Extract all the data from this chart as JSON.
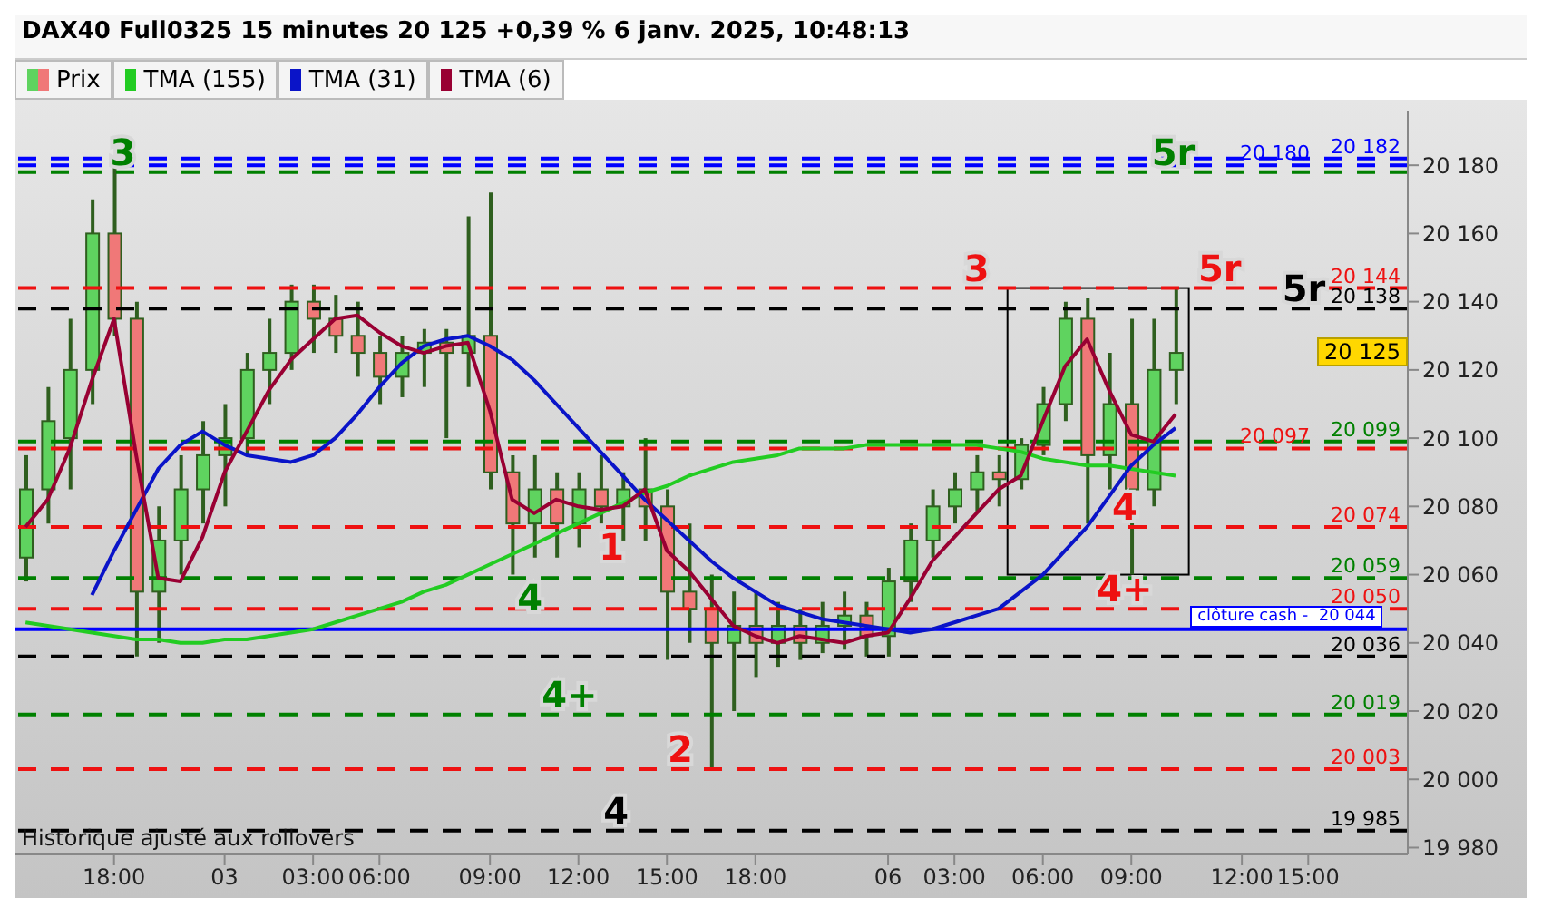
{
  "chart_data": {
    "type": "candlestick",
    "title": "DAX40 Full0325 15 minutes 20 125 +0,39 % 6 janv. 2025, 10:48:13",
    "legend": "top left",
    "grid": false,
    "categories": [
      null,
      null,
      null,
      null,
      "18:00",
      null,
      null,
      null,
      null,
      "03",
      null,
      null,
      null,
      "03:00",
      null,
      null,
      "06:00",
      null,
      null,
      null,
      null,
      "09:00",
      null,
      null,
      null,
      "12:00",
      null,
      null,
      null,
      "15:00",
      null,
      null,
      null,
      "18:00",
      null,
      null,
      null,
      null,
      null,
      "06",
      null,
      null,
      "03:00",
      null,
      null,
      null,
      "06:00",
      null,
      null,
      null,
      "09:00",
      null,
      null,
      null,
      null,
      "12:00",
      null,
      null,
      "15:00",
      null,
      null,
      null,
      null
    ],
    "ylim": [
      19978,
      20196
    ],
    "yticks": [
      {
        "value": 19980,
        "label": "19 980"
      },
      {
        "value": 20000,
        "label": "20 000"
      },
      {
        "value": 20020,
        "label": "20 020"
      },
      {
        "value": 20040,
        "label": "20 040"
      },
      {
        "value": 20060,
        "label": "20 060"
      },
      {
        "value": 20080,
        "label": "20 080"
      },
      {
        "value": 20100,
        "label": "20 100"
      },
      {
        "value": 20120,
        "label": "20 120"
      },
      {
        "value": 20140,
        "label": "20 140"
      },
      {
        "value": 20160,
        "label": "20 160"
      },
      {
        "value": 20180,
        "label": "20 180"
      }
    ],
    "series": [
      {
        "name": "Prix",
        "type": "candlestick",
        "ohlc": [
          [
            20065,
            20095,
            20058,
            20085
          ],
          [
            20085,
            20115,
            20075,
            20105
          ],
          [
            20100,
            20135,
            20085,
            20120
          ],
          [
            20120,
            20170,
            20110,
            20160
          ],
          [
            20160,
            20182,
            20130,
            20135
          ],
          [
            20135,
            20140,
            20036,
            20055
          ],
          [
            20055,
            20080,
            20040,
            20070
          ],
          [
            20070,
            20095,
            20060,
            20085
          ],
          [
            20085,
            20105,
            20075,
            20095
          ],
          [
            20095,
            20110,
            20080,
            20100
          ],
          [
            20100,
            20125,
            20095,
            20120
          ],
          [
            20120,
            20135,
            20110,
            20125
          ],
          [
            20125,
            20145,
            20120,
            20140
          ],
          [
            20140,
            20145,
            20125,
            20135
          ],
          [
            20135,
            20142,
            20125,
            20130
          ],
          [
            20130,
            20140,
            20118,
            20125
          ],
          [
            20125,
            20130,
            20110,
            20118
          ],
          [
            20118,
            20130,
            20112,
            20125
          ],
          [
            20125,
            20132,
            20115,
            20128
          ],
          [
            20128,
            20132,
            20100,
            20125
          ],
          [
            20125,
            20165,
            20115,
            20130
          ],
          [
            20130,
            20172,
            20085,
            20090
          ],
          [
            20090,
            20095,
            20060,
            20075
          ],
          [
            20075,
            20095,
            20065,
            20085
          ],
          [
            20085,
            20090,
            20065,
            20075
          ],
          [
            20075,
            20090,
            20068,
            20085
          ],
          [
            20085,
            20095,
            20075,
            20080
          ],
          [
            20080,
            20090,
            20070,
            20085
          ],
          [
            20085,
            20100,
            20070,
            20080
          ],
          [
            20080,
            20085,
            20035,
            20055
          ],
          [
            20055,
            20075,
            20040,
            20050
          ],
          [
            20050,
            20060,
            20003,
            20040
          ],
          [
            20040,
            20055,
            20020,
            20045
          ],
          [
            20045,
            20055,
            20030,
            20040
          ],
          [
            20040,
            20052,
            20033,
            20045
          ],
          [
            20045,
            20050,
            20035,
            20040
          ],
          [
            20040,
            20052,
            20037,
            20045
          ],
          [
            20045,
            20055,
            20038,
            20048
          ],
          [
            20048,
            20052,
            20036,
            20042
          ],
          [
            20042,
            20062,
            20036,
            20058
          ],
          [
            20058,
            20075,
            20052,
            20070
          ],
          [
            20070,
            20085,
            20065,
            20080
          ],
          [
            20080,
            20090,
            20075,
            20085
          ],
          [
            20085,
            20095,
            20078,
            20090
          ],
          [
            20090,
            20095,
            20080,
            20088
          ],
          [
            20088,
            20100,
            20085,
            20098
          ],
          [
            20098,
            20115,
            20095,
            20110
          ],
          [
            20110,
            20140,
            20105,
            20135
          ],
          [
            20135,
            20141,
            20075,
            20095
          ],
          [
            20095,
            20125,
            20085,
            20110
          ],
          [
            20110,
            20135,
            20060,
            20085
          ],
          [
            20085,
            20135,
            20080,
            20120
          ],
          [
            20120,
            20144,
            20110,
            20125
          ],
          null,
          null,
          null,
          null,
          null,
          null,
          null,
          null,
          null,
          null
        ],
        "colors": [
          "#5fd35f",
          "#5fd35f",
          "#5fd35f",
          "#5fd35f",
          "#f07878",
          "#f07878",
          "#5fd35f",
          "#5fd35f",
          "#5fd35f",
          "#5fd35f",
          "#5fd35f",
          "#5fd35f",
          "#5fd35f",
          "#f07878",
          "#f07878",
          "#f07878",
          "#f07878",
          "#5fd35f",
          "#5fd35f",
          "#f07878",
          "#5fd35f",
          "#f07878",
          "#f07878",
          "#5fd35f",
          "#f07878",
          "#5fd35f",
          "#f07878",
          "#5fd35f",
          "#f07878",
          "#f07878",
          "#f07878",
          "#f07878",
          "#5fd35f",
          "#f07878",
          "#5fd35f",
          "#f07878",
          "#5fd35f",
          "#5fd35f",
          "#f07878",
          "#5fd35f",
          "#5fd35f",
          "#5fd35f",
          "#5fd35f",
          "#5fd35f",
          "#f07878",
          "#5fd35f",
          "#5fd35f",
          "#5fd35f",
          "#f07878",
          "#5fd35f",
          "#f07878",
          "#5fd35f",
          "#5fd35f",
          null,
          null,
          null,
          null,
          null,
          null,
          null,
          null,
          null,
          null
        ]
      },
      {
        "name": "TMA (155)",
        "type": "line",
        "color": "#22cc22",
        "values": [
          20046,
          20045,
          20044,
          20043,
          20042,
          20041,
          20041,
          20040,
          20040,
          20041,
          20041,
          20042,
          20043,
          20044,
          20046,
          20048,
          20050,
          20052,
          20055,
          20057,
          20060,
          20063,
          20066,
          20069,
          20072,
          20075,
          20078,
          20081,
          20084,
          20086,
          20089,
          20091,
          20093,
          20094,
          20095,
          20097,
          20097,
          20097,
          20098,
          20098,
          20098,
          20098,
          20098,
          20098,
          20097,
          20096,
          20094,
          20093,
          20092,
          20092,
          20091,
          20090,
          20089,
          null,
          null,
          null,
          null,
          null,
          null,
          null,
          null,
          null,
          null
        ]
      },
      {
        "name": "TMA (31)",
        "type": "line",
        "color": "#0a14c8",
        "values": [
          null,
          null,
          null,
          20054,
          20067,
          20079,
          20091,
          20098,
          20102,
          20098,
          20095,
          20094,
          20093,
          20095,
          20100,
          20107,
          20115,
          20122,
          20127,
          20129,
          20130,
          20127,
          20123,
          20117,
          20110,
          20103,
          20096,
          20089,
          20082,
          20076,
          20070,
          20064,
          20059,
          20055,
          20051,
          20049,
          20047,
          20046,
          20045,
          20044,
          20043,
          20044,
          20046,
          20048,
          20050,
          20055,
          20060,
          20067,
          20074,
          20083,
          20092,
          20098,
          20103,
          null,
          null,
          null,
          null,
          null,
          null,
          null,
          null,
          null,
          null
        ]
      },
      {
        "name": "TMA (6)",
        "type": "line",
        "color": "#990033",
        "values": [
          20074,
          20082,
          20097,
          20117,
          20135,
          20095,
          20059,
          20058,
          20071,
          20090,
          20102,
          20114,
          20123,
          20129,
          20135,
          20136,
          20131,
          20127,
          20125,
          20127,
          20128,
          20108,
          20082,
          20078,
          20082,
          20080,
          20079,
          20080,
          20085,
          20067,
          20061,
          20053,
          20045,
          20042,
          20040,
          20042,
          20041,
          20040,
          20042,
          20043,
          20053,
          20064,
          20071,
          20078,
          20085,
          20089,
          20105,
          20121,
          20129,
          20114,
          20101,
          20099,
          20107,
          null,
          null,
          null,
          null,
          null,
          null,
          null,
          null,
          null,
          null
        ]
      }
    ],
    "ref_lines": [
      {
        "axis": "y",
        "value": 20182,
        "label": "20 182",
        "color": "#0000ff",
        "line_style": "dashed"
      },
      {
        "axis": "y",
        "value": 20180,
        "label": "20 180",
        "color": "#0000ff",
        "line_style": "dashed"
      },
      {
        "axis": "y",
        "value": 20178,
        "color": "#008000",
        "line_style": "dashed"
      },
      {
        "axis": "y",
        "value": 20144,
        "label": "20 144",
        "color": "#ee1111",
        "line_style": "dashed"
      },
      {
        "axis": "y",
        "value": 20138,
        "label": "20 138",
        "color": "#000000",
        "line_style": "dashed"
      },
      {
        "axis": "y",
        "value": 20099,
        "label": "20 099",
        "color": "#008000",
        "line_style": "dashed"
      },
      {
        "axis": "y",
        "value": 20097,
        "label": "20 097",
        "color": "#ee1111",
        "line_style": "dashed"
      },
      {
        "axis": "y",
        "value": 20074,
        "label": "20 074",
        "color": "#ee1111",
        "line_style": "dashed"
      },
      {
        "axis": "y",
        "value": 20059,
        "label": "20 059",
        "color": "#008000",
        "line_style": "dashed"
      },
      {
        "axis": "y",
        "value": 20050,
        "label": "20 050",
        "color": "#ee1111",
        "line_style": "dashed"
      },
      {
        "axis": "y",
        "value": 20044,
        "label": "clôture cash -  20 044",
        "color": "#0000ff",
        "line_style": "solid"
      },
      {
        "axis": "y",
        "value": 20036,
        "label": "20 036",
        "color": "#000000",
        "line_style": "dashed"
      },
      {
        "axis": "y",
        "value": 20019,
        "label": "20 019",
        "color": "#008000",
        "line_style": "dashed"
      },
      {
        "axis": "y",
        "value": 20003,
        "label": "20 003",
        "color": "#ee1111",
        "line_style": "dashed"
      },
      {
        "axis": "y",
        "value": 19985,
        "label": "19 985",
        "color": "#000000",
        "line_style": "dashed"
      }
    ],
    "annotations": [
      {
        "text": "3",
        "y": 20178
      },
      {
        "text": "3",
        "y": 20144
      },
      {
        "text": "5r",
        "y": 20178
      },
      {
        "text": "5r",
        "y": 20144
      },
      {
        "text": "5r",
        "y": 20138
      },
      {
        "text": "4",
        "y": 20059
      },
      {
        "text": "1",
        "y": 20074
      },
      {
        "text": "4+",
        "y": 20019
      },
      {
        "text": "2",
        "y": 20003
      },
      {
        "text": "4",
        "y": 19985
      },
      {
        "text": "4",
        "y": 20074
      },
      {
        "text": "4+",
        "y": 20050
      },
      "20 125",
      "Historique ajusté aux rollovers"
    ]
  }
}
